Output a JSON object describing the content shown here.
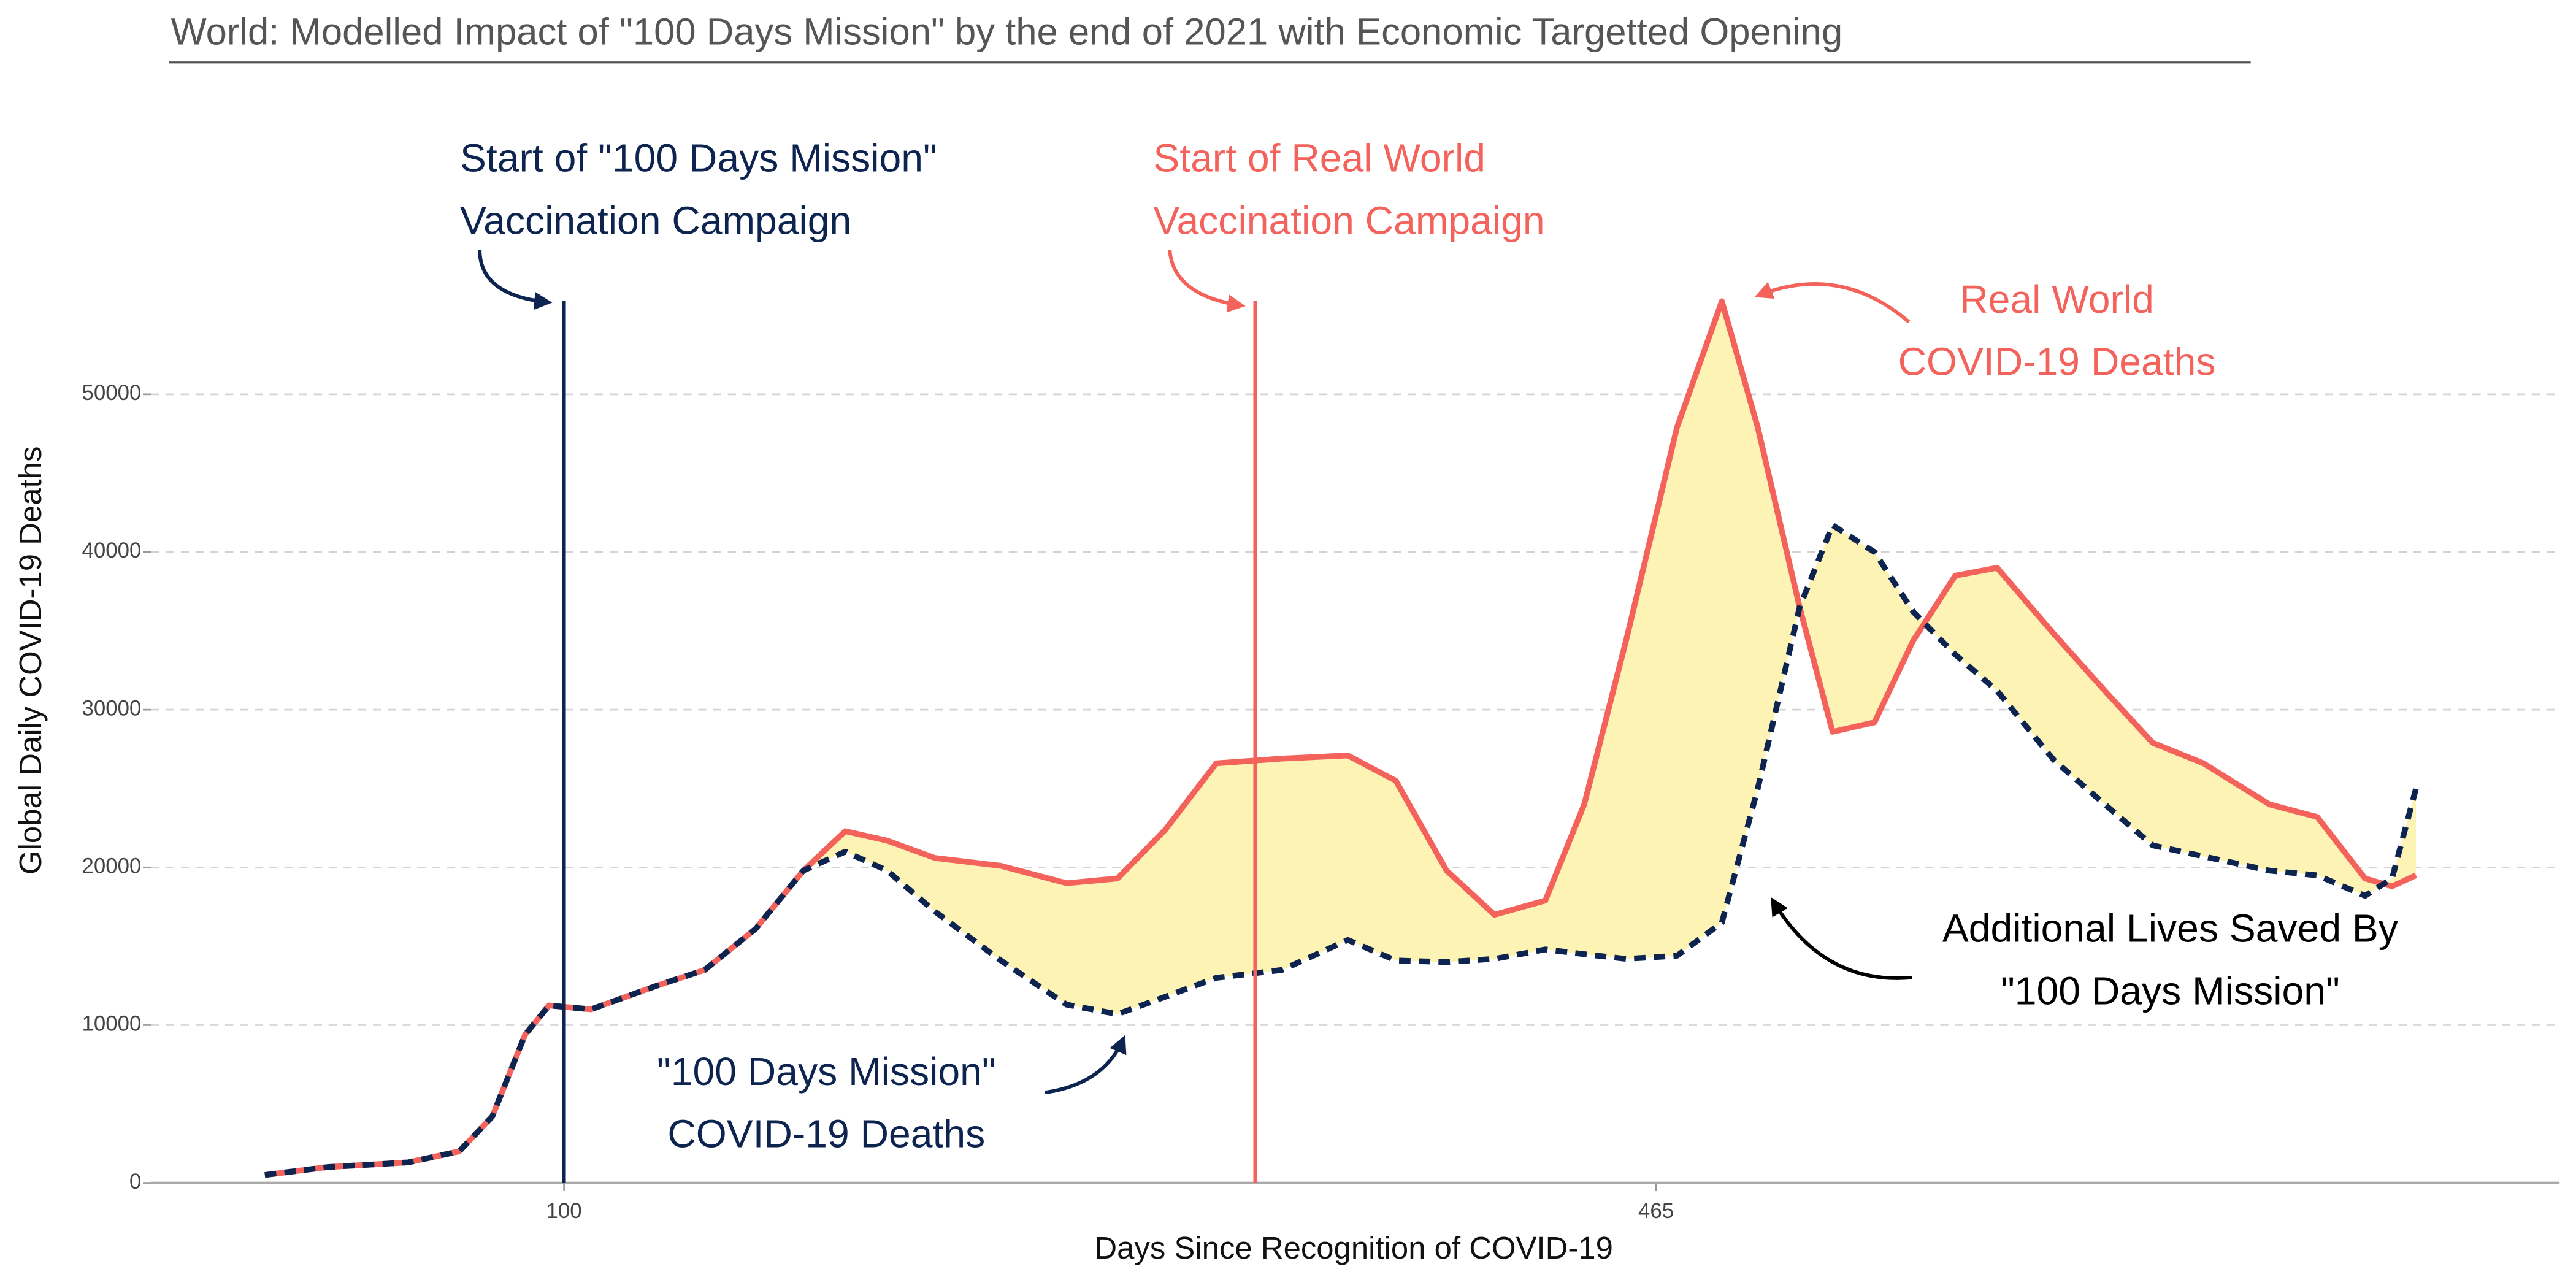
{
  "chart_data": {
    "type": "line",
    "title": "World: Modelled Impact of \"100 Days Mission\" by the end of 2021 with Economic Targetted Opening",
    "x_label": "Days Since Recognition of COVID-19",
    "y_label": "Global Daily COVID-19 Deaths",
    "x": [
      0,
      21,
      48,
      65,
      76,
      87,
      95,
      109,
      131,
      147,
      164,
      180,
      194,
      208,
      224,
      246,
      268,
      285,
      301,
      318,
      340,
      362,
      378,
      395,
      411,
      428,
      441,
      455,
      472,
      487,
      499,
      513,
      524,
      538,
      551,
      565,
      579,
      598,
      615,
      631,
      648,
      670,
      686,
      702,
      711,
      719
    ],
    "series": [
      {
        "name": "Real World COVID-19 Deaths",
        "color": "#f4625c",
        "dashed": false,
        "values": [
          500,
          1000,
          1300,
          2000,
          4200,
          9400,
          11250,
          11000,
          12500,
          13500,
          16100,
          19800,
          22300,
          21700,
          20600,
          20100,
          19000,
          19300,
          22400,
          26600,
          26900,
          27100,
          25500,
          19800,
          17000,
          17900,
          24000,
          34400,
          47900,
          55900,
          47900,
          36500,
          28600,
          29200,
          34400,
          38500,
          39000,
          34800,
          31200,
          27900,
          26600,
          24000,
          23200,
          19300,
          18800,
          19500
        ]
      },
      {
        "name": "\"100 Days Mission\" COVID-19 Deaths",
        "color": "#0d2450",
        "dashed": true,
        "values": [
          500,
          1000,
          1300,
          2000,
          4200,
          9400,
          11250,
          11000,
          12500,
          13500,
          16100,
          19800,
          21000,
          19800,
          17200,
          14100,
          11300,
          10700,
          11800,
          13000,
          13500,
          15400,
          14100,
          14000,
          14200,
          14800,
          14500,
          14200,
          14400,
          16500,
          25000,
          36500,
          41700,
          40000,
          36200,
          33500,
          31200,
          26800,
          24000,
          21400,
          20700,
          19800,
          19500,
          18200,
          19300,
          25000
        ]
      }
    ],
    "fill_color": "#fdf3b5",
    "xlim": [
      -38,
      767
    ],
    "ylim": [
      0,
      58000
    ],
    "xticks": [
      100,
      465
    ],
    "yticks": [
      0,
      10000,
      20000,
      30000,
      40000,
      50000
    ],
    "grid": true,
    "vlines": [
      {
        "x": 100,
        "color": "#0d2450",
        "label": [
          "Start of \"100 Days Mission\"",
          "Vaccination Campaign"
        ]
      },
      {
        "x": 331,
        "color": "#f4625c",
        "label": [
          "Start of Real World",
          "Vaccination Campaign"
        ]
      }
    ],
    "annotations": [
      {
        "text": [
          "Real World",
          "COVID-19 Deaths"
        ],
        "color": "#f4625c"
      },
      {
        "text": [
          "Additional Lives Saved By",
          "\"100 Days Mission\""
        ],
        "color": "#000000"
      },
      {
        "text": [
          "\"100 Days Mission\"",
          "COVID-19 Deaths"
        ],
        "color": "#0d2450"
      }
    ]
  }
}
